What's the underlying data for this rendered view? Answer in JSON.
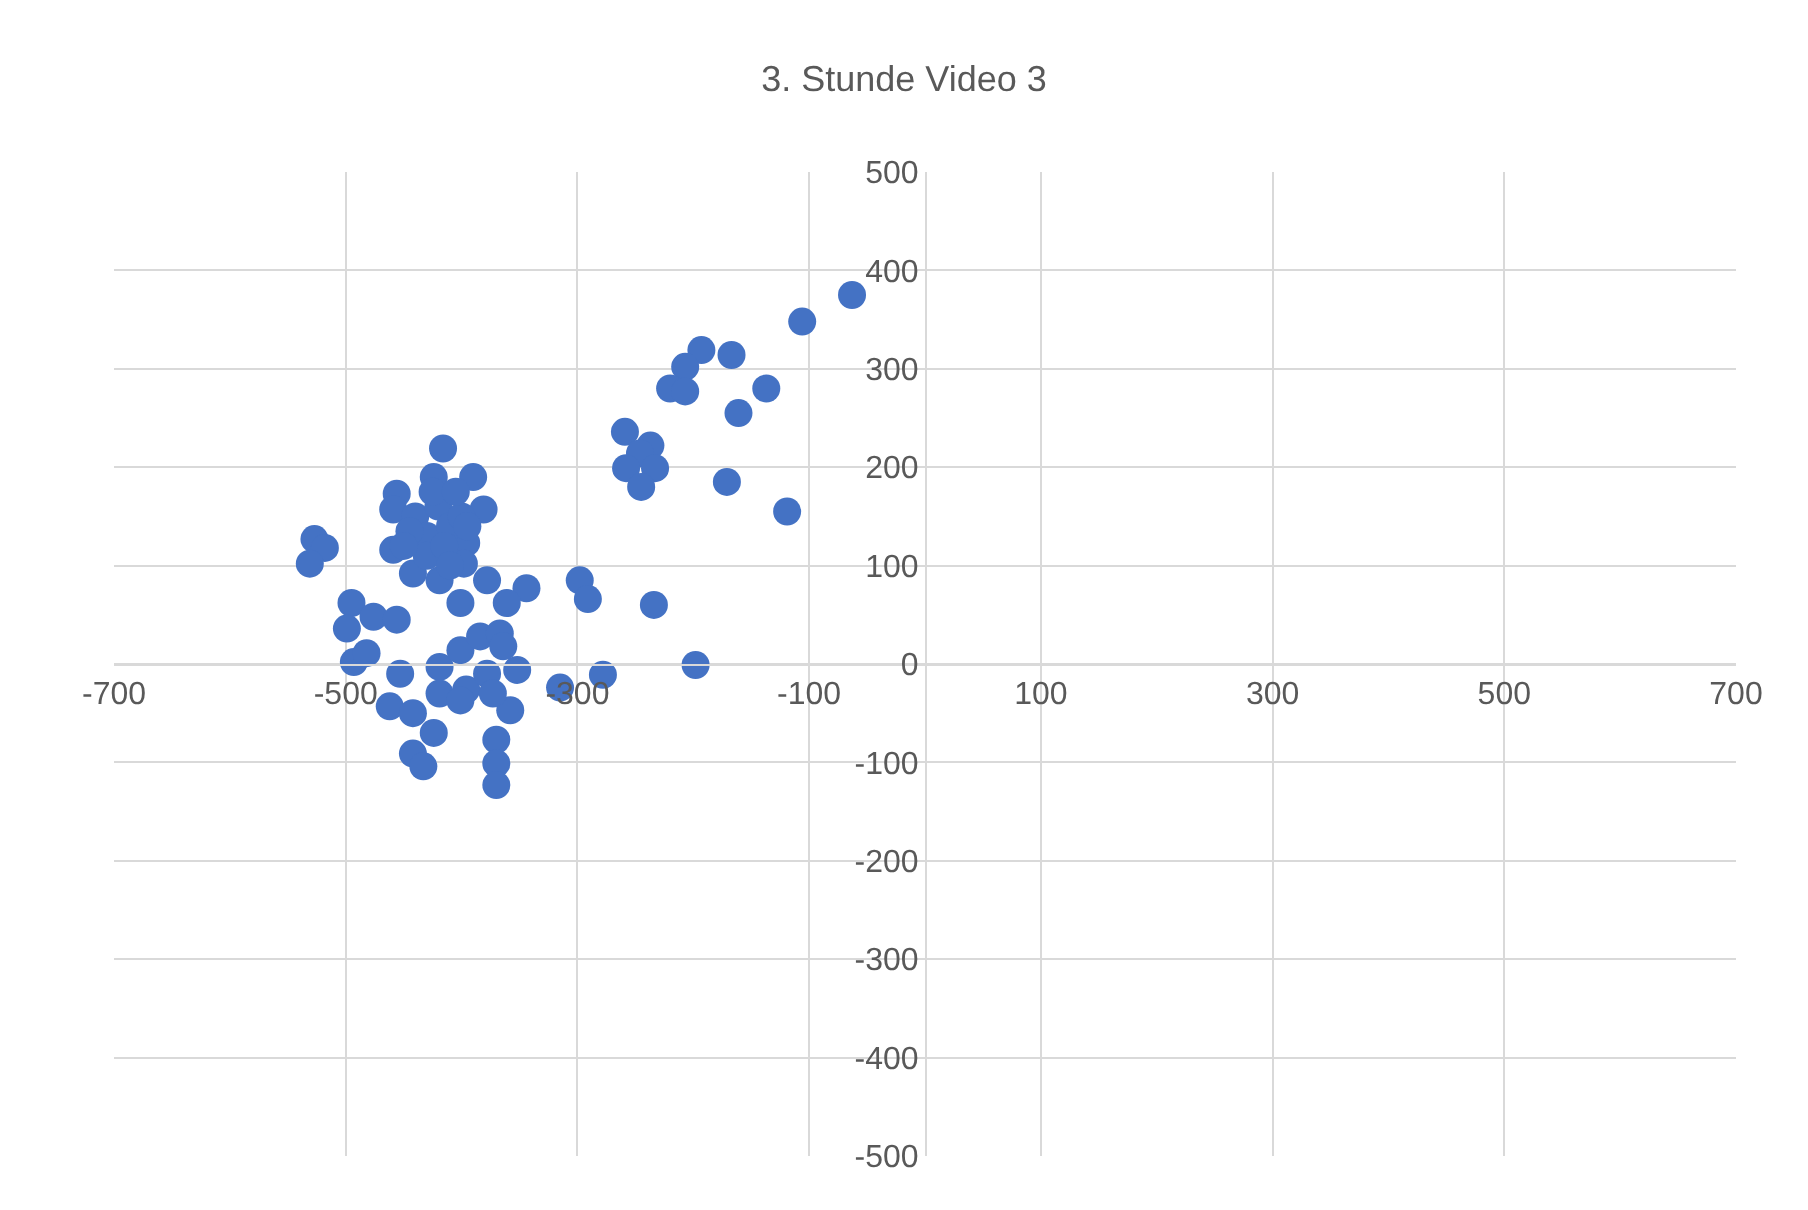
{
  "chart_data": {
    "type": "scatter",
    "title": "3. Stunde Video 3",
    "marker": "circle",
    "grid": true,
    "xlim": [
      -700,
      700
    ],
    "ylim": [
      -500,
      500
    ],
    "xticks": [
      -700,
      -500,
      -300,
      -100,
      100,
      300,
      500,
      700
    ],
    "yticks": [
      -500,
      -400,
      -300,
      -200,
      -100,
      0,
      100,
      200,
      300,
      400,
      500
    ],
    "series": [
      {
        "color": "#4472c4",
        "x": [
          -63,
          -106,
          -167,
          -193,
          -207,
          -220,
          -207,
          -137,
          -161,
          -259,
          -237,
          -246,
          -258,
          -233,
          -245,
          -171,
          -119,
          -298,
          -291,
          -234,
          -198,
          -278,
          -315,
          -344,
          -416,
          -527,
          -518,
          -531,
          -495,
          -499,
          -476,
          -456,
          -493,
          -482,
          -401,
          -378,
          -361,
          -453,
          -462,
          -442,
          -424,
          -442,
          -433,
          -370,
          -370,
          -370,
          -358,
          -352,
          -419,
          -401,
          -384,
          -367,
          -364,
          -419,
          -396,
          -378,
          -373,
          -401,
          -456,
          -459,
          -424,
          -390,
          -381,
          -459,
          -442,
          -419,
          -396,
          -398,
          -440,
          -430,
          -420,
          -410,
          -400,
          -430,
          -415,
          -445,
          -425,
          -405,
          -410,
          -395,
          -450
        ],
        "values": [
          375,
          348,
          314,
          319,
          302,
          280,
          277,
          280,
          255,
          236,
          222,
          214,
          199,
          199,
          180,
          185,
          155,
          85,
          66,
          60,
          -1,
          -11,
          -24,
          77,
          219,
          127,
          118,
          102,
          62,
          36,
          48,
          45,
          2,
          11,
          62,
          85,
          62,
          -10,
          -43,
          -50,
          -70,
          -91,
          -104,
          -77,
          -101,
          -123,
          -47,
          -6,
          -3,
          14,
          28,
          31,
          18,
          -30,
          -26,
          -10,
          -30,
          -37,
          173,
          157,
          190,
          190,
          157,
          116,
          92,
          85,
          123,
          102,
          150,
          130,
          160,
          140,
          150,
          110,
          120,
          135,
          175,
          175,
          100,
          140,
          120
        ]
      }
    ]
  }
}
